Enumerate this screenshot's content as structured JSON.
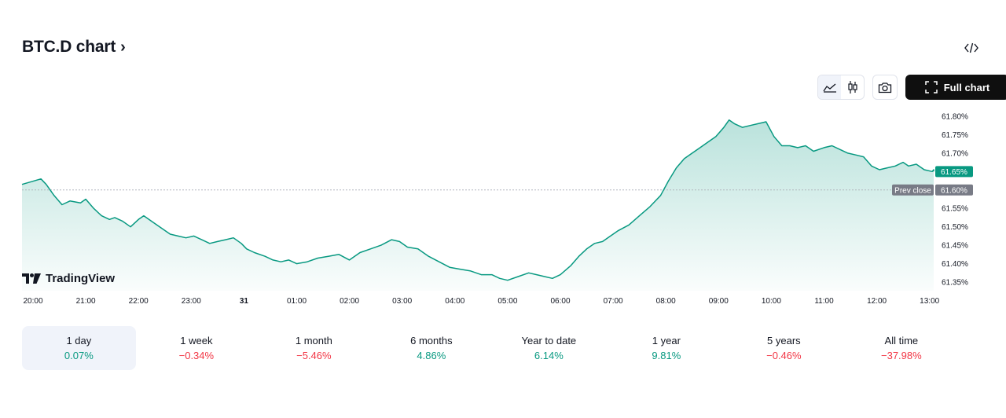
{
  "header": {
    "title": "BTC.D chart",
    "chevron": "›",
    "embed_icon": "code-icon"
  },
  "toolbar": {
    "line_icon": "area-chart-icon",
    "candle_icon": "candlestick-icon",
    "camera_icon": "camera-icon",
    "full_chart_label": "Full chart",
    "full_chart_icon": "fullscreen-icon"
  },
  "brand": {
    "name": "TradingView"
  },
  "colors": {
    "line": "#089981",
    "fill_top": "#089981",
    "negative": "#f23645",
    "badge": "#089981",
    "prev_close_badge": "#787b86"
  },
  "chart_data": {
    "type": "area",
    "title": "BTC.D chart",
    "x_tick_labels": [
      "20:00",
      "21:00",
      "22:00",
      "23:00",
      "31",
      "01:00",
      "02:00",
      "03:00",
      "04:00",
      "05:00",
      "06:00",
      "07:00",
      "08:00",
      "09:00",
      "10:00",
      "11:00",
      "12:00",
      "13:00"
    ],
    "y_tick_labels": [
      "61.80%",
      "61.75%",
      "61.70%",
      "61.65%",
      "61.60%",
      "61.55%",
      "61.50%",
      "61.45%",
      "61.40%",
      "61.35%"
    ],
    "ylim": [
      61.35,
      61.8
    ],
    "x_unit": "hours from 20:00",
    "series": [
      {
        "x": [
          0,
          0.15,
          0.25,
          0.4,
          0.55,
          0.7,
          0.9,
          1.0,
          1.15,
          1.3,
          1.45,
          1.55,
          1.7,
          1.85,
          2.0,
          2.1,
          2.3,
          2.45,
          2.6,
          2.75,
          2.9,
          3.05,
          3.2,
          3.35,
          3.5,
          3.65,
          3.8,
          3.95,
          4.05,
          4.2,
          4.4,
          4.55,
          4.7,
          4.85,
          5.0,
          5.2,
          5.4,
          5.6,
          5.8,
          6.0,
          6.2,
          6.4,
          6.6,
          6.8,
          6.95,
          7.1,
          7.3,
          7.5,
          7.7,
          7.9,
          8.1,
          8.3,
          8.5,
          8.7,
          8.85,
          9.0,
          9.2,
          9.4,
          9.55,
          9.7,
          9.85,
          10.0,
          10.2,
          10.35,
          10.5,
          10.65,
          10.8,
          10.95,
          11.1,
          11.3,
          11.5,
          11.7,
          11.9,
          12.05,
          12.2,
          12.35,
          12.5,
          12.65,
          12.8,
          12.95,
          13.1,
          13.2,
          13.3,
          13.45,
          13.6,
          13.75,
          13.9,
          14.05,
          14.2,
          14.35,
          14.5,
          14.65,
          14.8,
          15.0,
          15.15,
          15.3,
          15.45,
          15.6,
          15.75,
          15.9,
          16.05,
          16.2,
          16.35,
          16.5,
          16.6,
          16.75,
          16.9,
          17.05,
          17.2,
          17.3
        ],
        "values": [
          61.615,
          61.63,
          61.615,
          61.585,
          61.56,
          61.57,
          61.565,
          61.575,
          61.55,
          61.53,
          61.52,
          61.525,
          61.515,
          61.5,
          61.52,
          61.53,
          61.51,
          61.495,
          61.48,
          61.475,
          61.47,
          61.475,
          61.465,
          61.455,
          61.46,
          61.465,
          61.47,
          61.455,
          61.44,
          61.43,
          61.42,
          61.41,
          61.405,
          61.41,
          61.4,
          61.405,
          61.415,
          61.42,
          61.425,
          61.41,
          61.43,
          61.44,
          61.45,
          61.465,
          61.46,
          61.445,
          61.44,
          61.42,
          61.405,
          61.39,
          61.385,
          61.38,
          61.37,
          61.37,
          61.36,
          61.355,
          61.365,
          61.375,
          61.37,
          61.365,
          61.36,
          61.37,
          61.395,
          61.42,
          61.44,
          61.455,
          61.46,
          61.475,
          61.49,
          61.505,
          61.53,
          61.555,
          61.585,
          61.625,
          61.66,
          61.685,
          61.7,
          61.715,
          61.73,
          61.745,
          61.77,
          61.79,
          61.78,
          61.77,
          61.775,
          61.78,
          61.785,
          61.745,
          61.72,
          61.72,
          61.715,
          61.72,
          61.705,
          61.715,
          61.72,
          61.71,
          61.7,
          61.695,
          61.69,
          61.665,
          61.655,
          61.66,
          61.665,
          61.675,
          61.665,
          61.67,
          61.655,
          61.65,
          61.655,
          61.65
        ]
      }
    ],
    "last_value_label": "61.65%",
    "prev_close_value": 61.6,
    "prev_close_label": "Prev close",
    "prev_close_value_label": "61.60%",
    "grid": false
  },
  "periods": [
    {
      "label": "1 day",
      "value": "0.07%",
      "dir": "pos",
      "active": true
    },
    {
      "label": "1 week",
      "value": "−0.34%",
      "dir": "neg",
      "active": false
    },
    {
      "label": "1 month",
      "value": "−5.46%",
      "dir": "neg",
      "active": false
    },
    {
      "label": "6 months",
      "value": "4.86%",
      "dir": "pos",
      "active": false
    },
    {
      "label": "Year to date",
      "value": "6.14%",
      "dir": "pos",
      "active": false
    },
    {
      "label": "1 year",
      "value": "9.81%",
      "dir": "pos",
      "active": false
    },
    {
      "label": "5 years",
      "value": "−0.46%",
      "dir": "neg",
      "active": false
    },
    {
      "label": "All time",
      "value": "−37.98%",
      "dir": "neg",
      "active": false
    }
  ]
}
